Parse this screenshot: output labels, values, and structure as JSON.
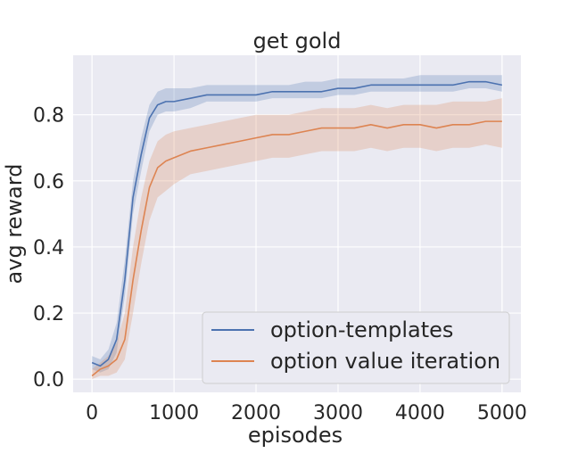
{
  "chart_data": {
    "type": "line",
    "title": "get gold",
    "xlabel": "episodes",
    "ylabel": "avg reward",
    "xlim": [
      -230,
      5230
    ],
    "ylim": [
      -0.04,
      0.98
    ],
    "x_ticks": [
      0,
      1000,
      2000,
      3000,
      4000,
      5000
    ],
    "y_ticks": [
      0.0,
      0.2,
      0.4,
      0.6,
      0.8
    ],
    "grid": true,
    "legend_position": "bottom-right",
    "series": [
      {
        "name": "option-templates",
        "color": "#4c72b0",
        "x": [
          0,
          100,
          200,
          300,
          400,
          500,
          600,
          700,
          800,
          900,
          1000,
          1200,
          1400,
          1600,
          1800,
          2000,
          2200,
          2400,
          2600,
          2800,
          3000,
          3200,
          3400,
          3600,
          3800,
          4000,
          4200,
          4400,
          4600,
          4800,
          5000
        ],
        "y": [
          0.05,
          0.04,
          0.06,
          0.12,
          0.3,
          0.55,
          0.68,
          0.79,
          0.83,
          0.84,
          0.84,
          0.85,
          0.86,
          0.86,
          0.86,
          0.86,
          0.87,
          0.87,
          0.87,
          0.87,
          0.88,
          0.88,
          0.89,
          0.89,
          0.89,
          0.89,
          0.89,
          0.89,
          0.9,
          0.9,
          0.89
        ],
        "lower": [
          0.03,
          0.02,
          0.03,
          0.08,
          0.25,
          0.5,
          0.63,
          0.75,
          0.8,
          0.81,
          0.81,
          0.82,
          0.84,
          0.84,
          0.84,
          0.84,
          0.85,
          0.85,
          0.85,
          0.85,
          0.86,
          0.86,
          0.87,
          0.87,
          0.87,
          0.87,
          0.87,
          0.87,
          0.88,
          0.88,
          0.87
        ],
        "upper": [
          0.07,
          0.06,
          0.09,
          0.17,
          0.36,
          0.6,
          0.73,
          0.83,
          0.87,
          0.88,
          0.88,
          0.88,
          0.89,
          0.89,
          0.89,
          0.89,
          0.89,
          0.89,
          0.9,
          0.9,
          0.91,
          0.91,
          0.91,
          0.91,
          0.91,
          0.92,
          0.92,
          0.92,
          0.92,
          0.92,
          0.92
        ]
      },
      {
        "name": "option value iteration",
        "color": "#dd8452",
        "x": [
          0,
          100,
          200,
          300,
          400,
          500,
          600,
          700,
          800,
          900,
          1000,
          1200,
          1400,
          1600,
          1800,
          2000,
          2200,
          2400,
          2600,
          2800,
          3000,
          3200,
          3400,
          3600,
          3800,
          4000,
          4200,
          4400,
          4600,
          4800,
          5000
        ],
        "y": [
          0.01,
          0.03,
          0.04,
          0.06,
          0.12,
          0.3,
          0.45,
          0.58,
          0.64,
          0.66,
          0.67,
          0.69,
          0.7,
          0.71,
          0.72,
          0.73,
          0.74,
          0.74,
          0.75,
          0.76,
          0.76,
          0.76,
          0.77,
          0.76,
          0.77,
          0.77,
          0.76,
          0.77,
          0.77,
          0.78,
          0.78
        ],
        "lower": [
          0.0,
          0.01,
          0.01,
          0.02,
          0.06,
          0.2,
          0.35,
          0.48,
          0.55,
          0.57,
          0.59,
          0.62,
          0.63,
          0.64,
          0.65,
          0.66,
          0.67,
          0.67,
          0.68,
          0.69,
          0.69,
          0.69,
          0.7,
          0.69,
          0.7,
          0.7,
          0.69,
          0.7,
          0.7,
          0.71,
          0.7
        ],
        "upper": [
          0.03,
          0.05,
          0.07,
          0.11,
          0.2,
          0.4,
          0.55,
          0.66,
          0.72,
          0.74,
          0.75,
          0.76,
          0.77,
          0.78,
          0.79,
          0.8,
          0.8,
          0.8,
          0.81,
          0.82,
          0.82,
          0.82,
          0.83,
          0.82,
          0.83,
          0.83,
          0.83,
          0.84,
          0.84,
          0.84,
          0.85
        ]
      }
    ]
  }
}
